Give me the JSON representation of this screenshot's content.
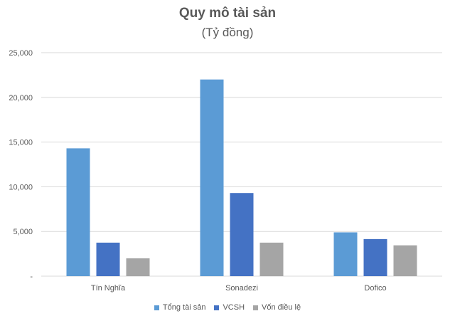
{
  "chart_data": {
    "type": "bar",
    "title": "Quy mô tài sản",
    "subtitle": "(Tỷ đồng)",
    "categories": [
      "Tín Nghĩa",
      "Sonadezi",
      "Dofico"
    ],
    "series": [
      {
        "name": "Tổng tài sản",
        "color": "#5B9BD5",
        "values": [
          14300,
          22000,
          4900
        ]
      },
      {
        "name": "VCSH",
        "color": "#4472C4",
        "values": [
          3750,
          9300,
          4150
        ]
      },
      {
        "name": "Vốn điều lệ",
        "color": "#A5A5A5",
        "values": [
          2000,
          3750,
          3450
        ]
      }
    ],
    "ylim": [
      0,
      25000
    ],
    "yticks": [
      0,
      5000,
      10000,
      15000,
      20000,
      25000
    ],
    "ytick_labels": [
      "-",
      "5,000",
      "10,000",
      "15,000",
      "20,000",
      "25,000"
    ],
    "grid": true,
    "legend": "bottom"
  }
}
